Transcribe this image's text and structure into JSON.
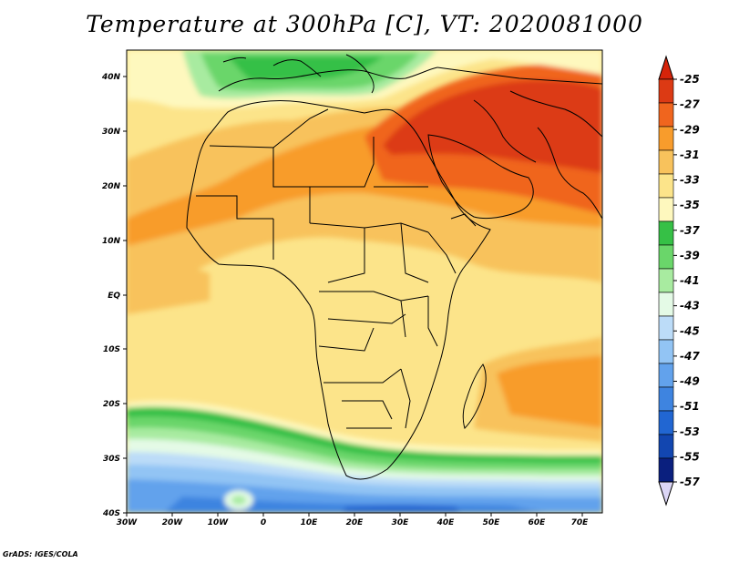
{
  "title": "Temperature at 300hPa [C], VT: 2020081000",
  "credit": "GrADS: IGES/COLA",
  "map": {
    "lon_labels": [
      "30W",
      "20W",
      "10W",
      "0",
      "10E",
      "20E",
      "30E",
      "40E",
      "50E",
      "60E",
      "70E"
    ],
    "lat_labels": [
      "40N",
      "30N",
      "20N",
      "10N",
      "EQ",
      "10S",
      "20S",
      "30S",
      "40S"
    ]
  },
  "colorbar": {
    "labels": [
      "-25",
      "-27",
      "-29",
      "-31",
      "-33",
      "-35",
      "-37",
      "-39",
      "-41",
      "-43",
      "-45",
      "-47",
      "-49",
      "-51",
      "-53",
      "-55",
      "-57"
    ],
    "colors": [
      "#dc3a14",
      "#f0651e",
      "#f89c2c",
      "#f8c25c",
      "#fce48a",
      "#fef8be",
      "#36c046",
      "#6ad66a",
      "#a8eba0",
      "#e4fae6",
      "#bcdcf8",
      "#92c4f4",
      "#62a2ec",
      "#3e84e0",
      "#2166d2",
      "#1246b0",
      "#0a1f7e"
    ],
    "top_arrow_color": "#d6240a",
    "bottom_arrow_color": "#dcd6f6"
  }
}
